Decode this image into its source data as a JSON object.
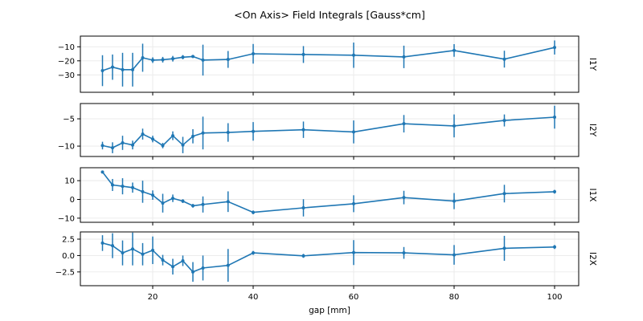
{
  "title": "<On Axis> Field Integrals [Gauss*cm]",
  "xlabel": "gap [mm]",
  "colors": {
    "line": "#1f77b4",
    "grid": "#e9e9e9",
    "spine": "#000000",
    "background": "#ffffff"
  },
  "chart_data": {
    "type": "line",
    "subtype": "errorbar-multipanel",
    "x": [
      10,
      12,
      14,
      16,
      18,
      20,
      22,
      24,
      26,
      28,
      30,
      35,
      40,
      50,
      60,
      70,
      80,
      90,
      100
    ],
    "xlim": [
      5.6,
      104.8
    ],
    "xticks": [
      20,
      40,
      60,
      80,
      100
    ],
    "xtick_labels": [
      "20",
      "40",
      "60",
      "80",
      "100"
    ],
    "grid": true,
    "legend": "none",
    "panels": [
      {
        "label": "I1Y",
        "ylim": [
          -42.4,
          -2.4
        ],
        "yticks": [
          -10,
          -20,
          -30
        ],
        "ytick_labels": [
          "−10",
          "−20",
          "−30"
        ],
        "values": [
          -27,
          -24.5,
          -26.3,
          -26.3,
          -17.8,
          -19.5,
          -19.2,
          -18.5,
          -17.4,
          -16.9,
          -19.5,
          -19,
          -15,
          -15.5,
          -16,
          -17.2,
          -12.6,
          -18.8,
          -10.5
        ],
        "errors": [
          11,
          9,
          12,
          12,
          10,
          2,
          2,
          2,
          1.5,
          1,
          11,
          6,
          7,
          6,
          9,
          8,
          4.5,
          6,
          5
        ]
      },
      {
        "label": "I2Y",
        "ylim": [
          -11.9,
          -2.2
        ],
        "yticks": [
          -5,
          -10
        ],
        "ytick_labels": [
          "−5",
          "−10"
        ],
        "values": [
          -9.9,
          -10.3,
          -9.4,
          -9.8,
          -7.8,
          -8.7,
          -9.9,
          -8.1,
          -9.8,
          -8.2,
          -7.6,
          -7.5,
          -7.3,
          -7.0,
          -7.4,
          -5.9,
          -6.3,
          -5.3,
          -4.7
        ],
        "errors": [
          0.7,
          1.0,
          1.3,
          0.8,
          1.0,
          0.6,
          0.5,
          0.8,
          1.5,
          1.3,
          3.0,
          1.7,
          1.7,
          1.5,
          2.1,
          1.6,
          2.1,
          1.1,
          2.1
        ]
      },
      {
        "label": "I1X",
        "ylim": [
          -12.2,
          16.9
        ],
        "yticks": [
          10,
          0,
          -10
        ],
        "ytick_labels": [
          "10",
          "0",
          "−10"
        ],
        "values": [
          14.6,
          7.7,
          7.0,
          6.3,
          4.1,
          2.3,
          -2.0,
          0.6,
          -0.9,
          -3.4,
          -2.7,
          -1.2,
          -6.9,
          -4.5,
          -2.3,
          1.0,
          -0.9,
          3.1,
          4.1
        ],
        "errors": [
          0.5,
          3.2,
          4.3,
          2.7,
          5.9,
          2.5,
          5.0,
          2.0,
          1.0,
          1.0,
          4.3,
          5.5,
          1.0,
          4.6,
          4.5,
          3.6,
          4.3,
          4.7,
          1.0
        ]
      },
      {
        "label": "I2X",
        "ylim": [
          -4.6,
          3.6
        ],
        "yticks": [
          2.5,
          0.0,
          -2.5
        ],
        "ytick_labels": [
          "2.5",
          "0.0",
          "−2.5"
        ],
        "values": [
          1.9,
          1.5,
          0.4,
          1.0,
          0.2,
          0.8,
          -0.7,
          -1.7,
          -0.8,
          -2.5,
          -1.9,
          -1.5,
          0.4,
          -0.05,
          0.45,
          0.4,
          0.1,
          1.1,
          1.3
        ],
        "errors": [
          1.2,
          1.9,
          1.9,
          2.5,
          1.7,
          2.1,
          0.8,
          1.2,
          0.8,
          1.5,
          1.9,
          2.5,
          0.3,
          0.3,
          1.9,
          0.9,
          1.5,
          1.9,
          0.3
        ]
      }
    ]
  }
}
